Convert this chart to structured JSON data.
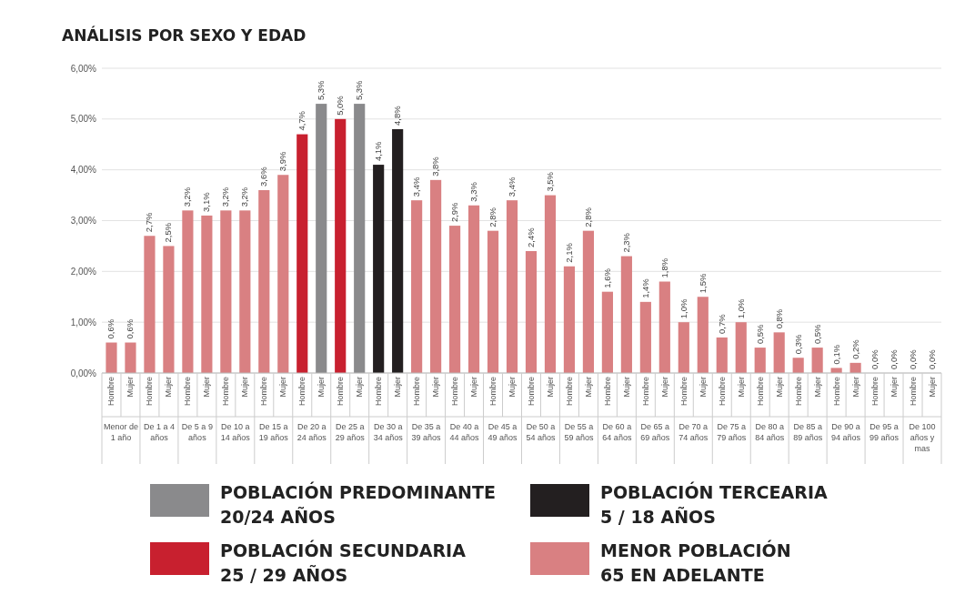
{
  "chart_data": {
    "type": "bar",
    "title": "ANÁLISIS POR SEXO Y EDAD",
    "stacked": true,
    "ylim": [
      0,
      6
    ],
    "yticks": [
      {
        "value": 0,
        "label": "0,00%"
      },
      {
        "value": 1,
        "label": "1,00%"
      },
      {
        "value": 2,
        "label": "2,00%"
      },
      {
        "value": 3,
        "label": "3,00%"
      },
      {
        "value": 4,
        "label": "4,00%"
      },
      {
        "value": 5,
        "label": "5,00%"
      },
      {
        "value": 6,
        "label": "6,00%"
      }
    ],
    "grid": "y",
    "legend": "bottom",
    "categories": [
      "Hombre",
      "Mujer",
      "Hombre",
      "Mujer",
      "Hombre",
      "Mujer",
      "Hombre",
      "Mujer",
      "Hombre",
      "Mujer",
      "Hombre",
      "Mujer",
      "Hombre",
      "Mujer",
      "Hombre",
      "Mujer",
      "Hombre",
      "Mujer",
      "Hombre",
      "Mujer",
      "Hombre",
      "Mujer",
      "Hombre",
      "Mujer",
      "Hombre",
      "Mujer",
      "Hombre",
      "Mujer",
      "Hombre",
      "Mujer",
      "Hombre",
      "Mujer",
      "Hombre",
      "Mujer",
      "Hombre",
      "Mujer",
      "Hombre",
      "Mujer",
      "Hombre",
      "Mujer",
      "Hombre",
      "Mujer",
      "Hombre",
      "Mujer"
    ],
    "annotations": [
      "Menor de 1 año",
      "De 1 a 4 años",
      "De 5 a 9 años",
      "De 10 a 14 años",
      "De 15 a 19 años",
      "De 20 a 24 años",
      "De 25 a 29 años",
      "De 30 a 34 años",
      "De 35 a 39 años",
      "De 40 a 44 años",
      "De 45 a 49 años",
      "De 50 a 54 años",
      "De 55 a 59 años",
      "De 60 a 64 años",
      "De 65 a 69 años",
      "De 70 a 74 años",
      "De 75 a 79 años",
      "De 80 a 84 años",
      "De 85 a 89 años",
      "De 90 a 94 años",
      "De 95 a 99 años",
      "De 100 años y mas"
    ],
    "series": [
      {
        "name": "POBLACIÓN PREDOMINANTE\n20/24 AÑOS",
        "color": "#8a8a8c",
        "values": [
          null,
          null,
          null,
          null,
          null,
          null,
          null,
          null,
          null,
          null,
          null,
          5.3,
          null,
          5.3,
          null,
          null,
          null,
          null,
          null,
          null,
          null,
          null,
          null,
          null,
          null,
          null,
          null,
          null,
          null,
          null,
          null,
          null,
          null,
          null,
          null,
          null,
          null,
          null,
          null,
          null,
          null,
          null,
          null,
          null
        ],
        "value_labels": [
          null,
          null,
          null,
          null,
          null,
          null,
          null,
          null,
          null,
          null,
          null,
          "5,3%",
          null,
          "5,3%",
          null,
          null,
          null,
          null,
          null,
          null,
          null,
          null,
          null,
          null,
          null,
          null,
          null,
          null,
          null,
          null,
          null,
          null,
          null,
          null,
          null,
          null,
          null,
          null,
          null,
          null,
          null,
          null,
          null,
          null
        ]
      },
      {
        "name": "POBLACIÓN TERCEARIA\n5 / 18 AÑOS",
        "color": "#231f20",
        "values": [
          null,
          null,
          null,
          null,
          null,
          null,
          null,
          null,
          null,
          null,
          null,
          null,
          null,
          null,
          4.1,
          4.8,
          null,
          null,
          null,
          null,
          null,
          null,
          null,
          null,
          null,
          null,
          null,
          null,
          null,
          null,
          null,
          null,
          null,
          null,
          null,
          null,
          null,
          null,
          null,
          null,
          null,
          null,
          null,
          null
        ],
        "value_labels": [
          null,
          null,
          null,
          null,
          null,
          null,
          null,
          null,
          null,
          null,
          null,
          null,
          null,
          null,
          "4,1%",
          "4,8%",
          null,
          null,
          null,
          null,
          null,
          null,
          null,
          null,
          null,
          null,
          null,
          null,
          null,
          null,
          null,
          null,
          null,
          null,
          null,
          null,
          null,
          null,
          null,
          null,
          null,
          null,
          null,
          null
        ]
      },
      {
        "name": "POBLACIÓN SECUNDARIA\n25 / 29 AÑOS",
        "color": "#c8202f",
        "values": [
          null,
          null,
          null,
          null,
          null,
          null,
          null,
          null,
          null,
          null,
          4.7,
          null,
          5.0,
          null,
          null,
          null,
          null,
          null,
          null,
          null,
          null,
          null,
          null,
          null,
          null,
          null,
          null,
          null,
          null,
          null,
          null,
          null,
          null,
          null,
          null,
          null,
          null,
          null,
          null,
          null,
          null,
          null,
          null,
          null
        ],
        "value_labels": [
          null,
          null,
          null,
          null,
          null,
          null,
          null,
          null,
          null,
          null,
          "4,7%",
          null,
          "5,0%",
          null,
          null,
          null,
          null,
          null,
          null,
          null,
          null,
          null,
          null,
          null,
          null,
          null,
          null,
          null,
          null,
          null,
          null,
          null,
          null,
          null,
          null,
          null,
          null,
          null,
          null,
          null,
          null,
          null,
          null,
          null
        ]
      },
      {
        "name": "MENOR POBLACIÓN\n65 EN ADELANTE",
        "color": "#d98082",
        "values": [
          0.6,
          0.6,
          2.7,
          2.5,
          3.2,
          3.1,
          3.2,
          3.2,
          3.6,
          3.9,
          null,
          null,
          null,
          null,
          null,
          null,
          3.4,
          3.8,
          2.9,
          3.3,
          2.8,
          3.4,
          2.4,
          3.5,
          2.1,
          2.8,
          1.6,
          2.3,
          1.4,
          1.8,
          1.0,
          1.5,
          0.7,
          1.0,
          0.5,
          0.8,
          0.3,
          0.5,
          0.1,
          0.2,
          0.0,
          0.0,
          0.0,
          0.0
        ],
        "value_labels": [
          "0,6%",
          "0,6%",
          "2,7%",
          "2,5%",
          "3,2%",
          "3,1%",
          "3,2%",
          "3,2%",
          "3,6%",
          "3,9%",
          null,
          null,
          null,
          null,
          null,
          null,
          "3,4%",
          "3,8%",
          "2,9%",
          "3,3%",
          "2,8%",
          "3,4%",
          "2,4%",
          "3,5%",
          "2,1%",
          "2,8%",
          "1,6%",
          "2,3%",
          "1,4%",
          "1,8%",
          "1,0%",
          "1,5%",
          "0,7%",
          "1,0%",
          "0,5%",
          "0,8%",
          "0,3%",
          "0,5%",
          "0,1%",
          "0,2%",
          "0,0%",
          "0,0%",
          "0,0%",
          "0,0%"
        ]
      }
    ]
  }
}
